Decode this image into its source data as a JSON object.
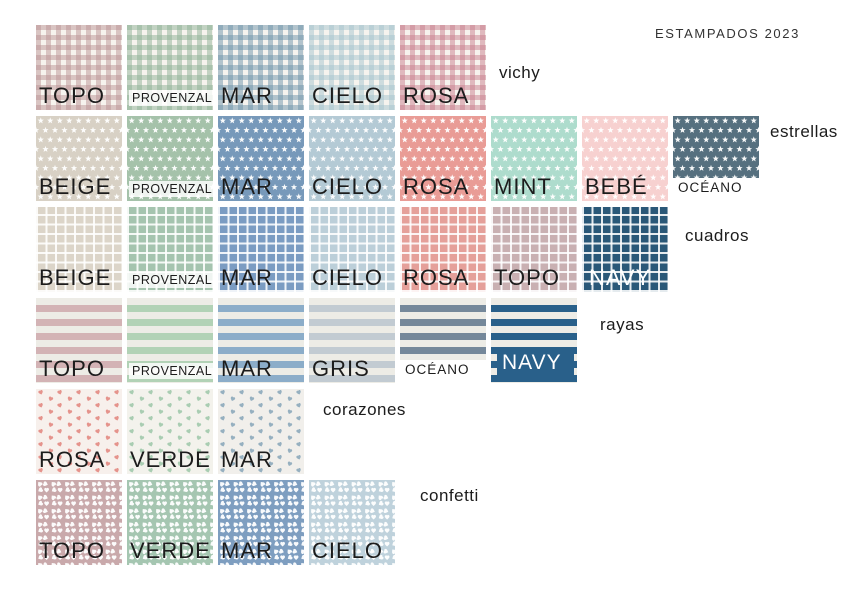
{
  "title": "ESTAMPADOS 2023",
  "text_color": "#1c1c1c",
  "background_color": "#ffffff",
  "rows": [
    {
      "name": "vichy",
      "pattern": "vichy",
      "bg": "#f6f3ee",
      "swatches": [
        {
          "label": "TOPO",
          "color": "#bc9597"
        },
        {
          "label": "PROVENZAL",
          "color": "#8fb296",
          "variant": "small"
        },
        {
          "label": "MAR",
          "color": "#6f94aa"
        },
        {
          "label": "CIELO",
          "color": "#a5c4cf"
        },
        {
          "label": "ROSA",
          "color": "#c97f8e"
        }
      ]
    },
    {
      "name": "estrellas",
      "pattern": "stars",
      "swatches": [
        {
          "label": "BEIGE",
          "color": "#d8d1c5"
        },
        {
          "label": "PROVENZAL",
          "color": "#a5c2aa",
          "variant": "small"
        },
        {
          "label": "MAR",
          "color": "#7799ba"
        },
        {
          "label": "CIELO",
          "color": "#b4cad5"
        },
        {
          "label": "ROSA",
          "color": "#e99c96"
        },
        {
          "label": "MINT",
          "color": "#aedccd"
        },
        {
          "label": "BEBÉ",
          "color": "#f7d1d0"
        },
        {
          "label": "OCÉANO",
          "color": "#56707f",
          "variant": "below"
        }
      ]
    },
    {
      "name": "cuadros",
      "pattern": "grid",
      "swatches": [
        {
          "label": "BEIGE",
          "color": "#dcd5c9"
        },
        {
          "label": "PROVENZAL",
          "color": "#a5c4af",
          "variant": "small"
        },
        {
          "label": "MAR",
          "color": "#7b9cc2"
        },
        {
          "label": "CIELO",
          "color": "#bccfd9"
        },
        {
          "label": "ROSA",
          "color": "#e5a09a"
        },
        {
          "label": "TOPO",
          "color": "#c9b0b2"
        },
        {
          "label": "NAVY",
          "color": "#2a5878",
          "variant": "overlay"
        }
      ]
    },
    {
      "name": "rayas",
      "pattern": "stripes",
      "bg": "#edece6",
      "swatches": [
        {
          "label": "TOPO",
          "color": "#d3b3b5"
        },
        {
          "label": "PROVENZAL",
          "color": "#b2d2b6",
          "variant": "small"
        },
        {
          "label": "MAR",
          "color": "#8cadc9"
        },
        {
          "label": "GRIS",
          "color": "#c2cbd2"
        },
        {
          "label": "OCÉANO",
          "color": "#75889a",
          "variant": "below"
        },
        {
          "label": "NAVY",
          "color": "#29608a",
          "variant": "band"
        }
      ]
    },
    {
      "name": "corazones",
      "pattern": "hearts",
      "swatches": [
        {
          "label": "ROSA",
          "color": "#e5938c",
          "bg": "#f7f0ec"
        },
        {
          "label": "VERDE",
          "color": "#a9cdb2",
          "bg": "#f3f2ec"
        },
        {
          "label": "MAR",
          "color": "#96b0c0",
          "bg": "#f1efeb"
        }
      ]
    },
    {
      "name": "confetti",
      "pattern": "confetti",
      "swatches": [
        {
          "label": "TOPO",
          "color": "#c9a9ab"
        },
        {
          "label": "VERDE",
          "color": "#a5c6b1"
        },
        {
          "label": "MAR",
          "color": "#7e9ec0"
        },
        {
          "label": "CIELO",
          "color": "#bfd2dc"
        }
      ]
    }
  ]
}
